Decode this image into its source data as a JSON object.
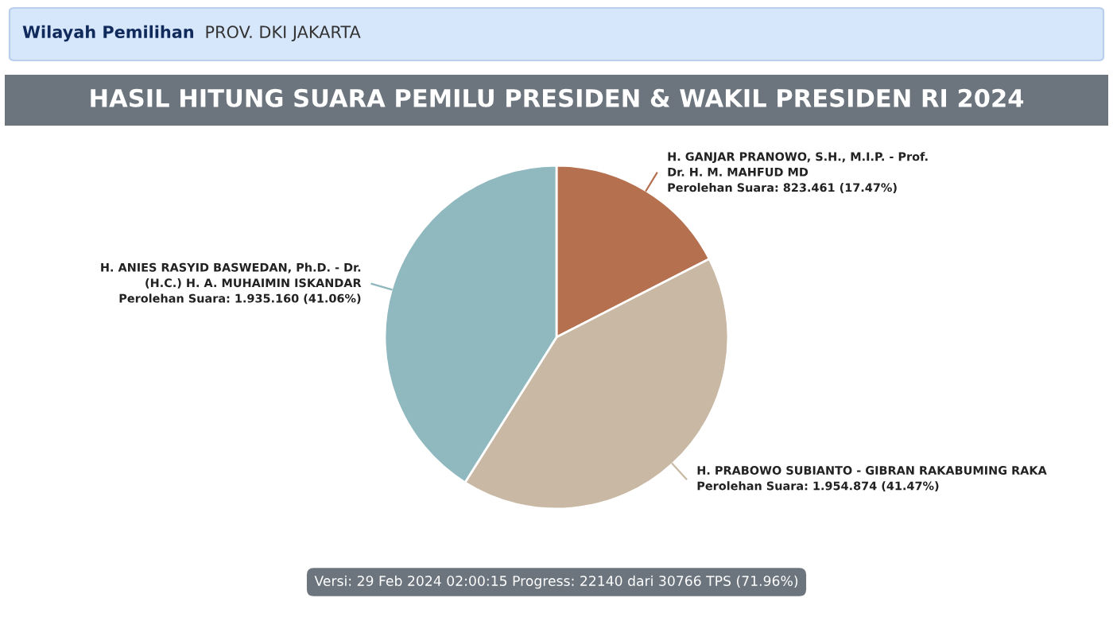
{
  "chart_data": {
    "type": "pie",
    "title": "HASIL HITUNG SUARA PEMILU PRESIDEN & WAKIL PRESIDEN RI 2024",
    "annotations": [
      "Wilayah Pemilihan",
      "PROV. DKI JAKARTA",
      "Versi: 29 Feb 2024 02:00:15 Progress: 22140 dari 30766 TPS (71.96%)"
    ],
    "categories": [
      "H. GANJAR PRANOWO, S.H., M.I.P. - Prof.\nDr. H. M. MAHFUD MD",
      "H. PRABOWO SUBIANTO - GIBRAN RAKABUMING RAKA",
      "H. ANIES RASYID BASWEDAN, Ph.D. - Dr.\n(H.C.) H. A. MUHAIMIN ISKANDAR"
    ],
    "values": [
      17.47,
      41.47,
      41.06
    ],
    "colors": [
      "#b5704f",
      "#c8b8a4",
      "#8fb8bf"
    ],
    "value_labels": [
      "Perolehan Suara: 823.461 (17.47%)",
      "Perolehan Suara: 1.954.874 (41.47%)",
      "Perolehan Suara: 1.935.160 (41.06%)"
    ]
  }
}
